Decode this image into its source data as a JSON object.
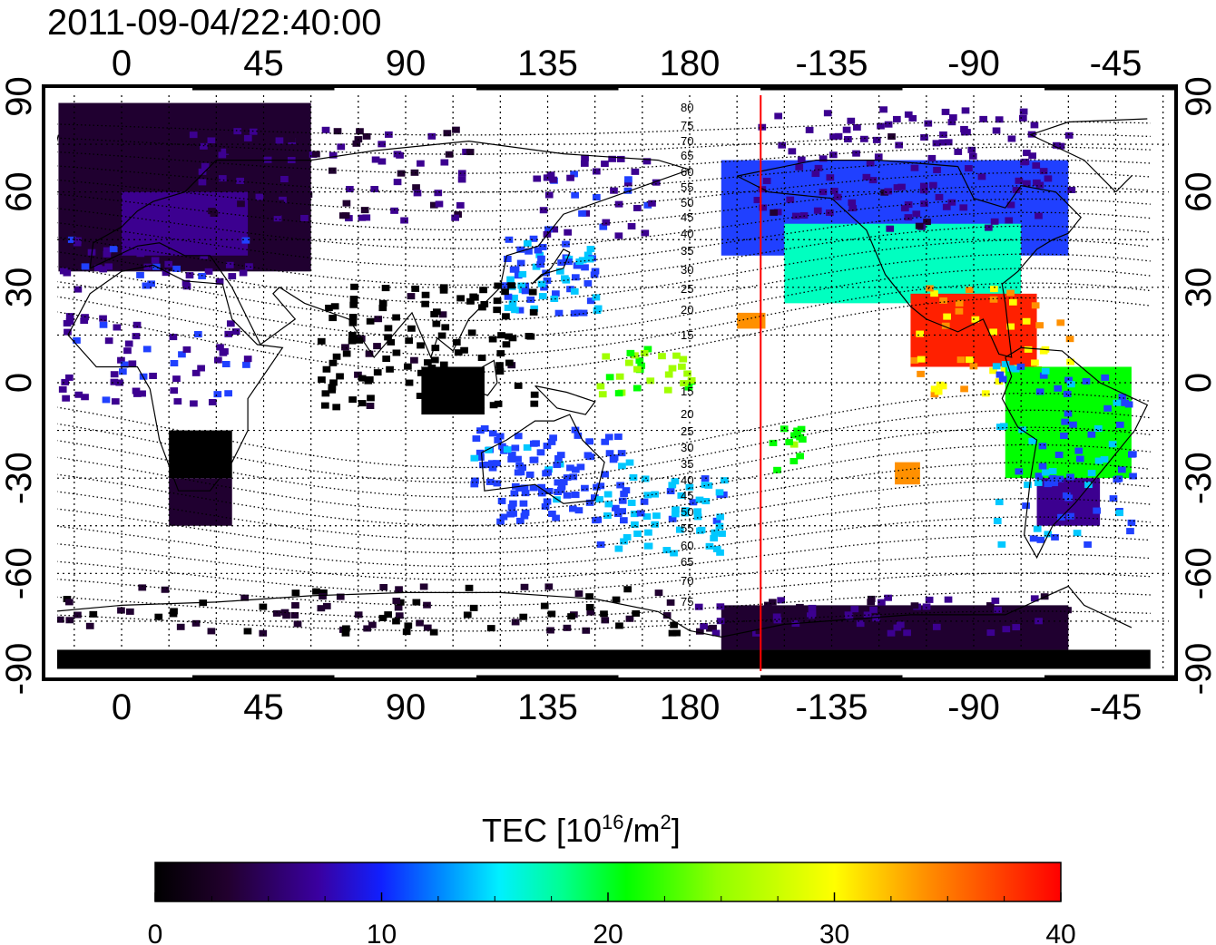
{
  "title": "2011-09-04/22:40:00",
  "map": {
    "projection": "equirectangular",
    "lon_range": [
      -22,
      326
    ],
    "lat_range": [
      -90,
      90
    ],
    "top_lon_ticks": [
      "0",
      "45",
      "90",
      "135",
      "180",
      "-135",
      "-90",
      "-45"
    ],
    "bottom_lon_ticks": [
      "0",
      "45",
      "90",
      "135",
      "180",
      "-135",
      "-90",
      "-45"
    ],
    "left_lat_ticks": [
      "90",
      "60",
      "30",
      "0",
      "-30",
      "-60",
      "-90"
    ],
    "right_lat_ticks": [
      "90",
      "60",
      "30",
      "0",
      "-30",
      "-60",
      "-90"
    ],
    "grid": "dotted, 15 degree spacing",
    "red_meridian_lon": -157.5,
    "magnetic_latitude_labels": [
      "80",
      "75",
      "70",
      "65",
      "60",
      "55",
      "50",
      "45",
      "40",
      "35",
      "30",
      "25",
      "20",
      "15",
      "15",
      "20",
      "25",
      "30",
      "35",
      "40",
      "45",
      "50",
      "55",
      "60",
      "65",
      "70",
      "75"
    ]
  },
  "colorbar": {
    "title_prefix": "TEC  [10",
    "title_sup1": "16",
    "title_mid": "/m",
    "title_sup2": "2",
    "title_suffix": "]",
    "ticks": [
      "0",
      "10",
      "20",
      "30",
      "40"
    ],
    "range": [
      0,
      40
    ],
    "colormap": [
      "#000000",
      "#200030",
      "#3c0090",
      "#2040ff",
      "#00c8ff",
      "#00ffc0",
      "#00ff00",
      "#a0ff00",
      "#ffff00",
      "#ff9000",
      "#ff2000",
      "#ff0000"
    ]
  },
  "colors": {
    "red_line": "#ff0000",
    "frame": "#000000"
  }
}
